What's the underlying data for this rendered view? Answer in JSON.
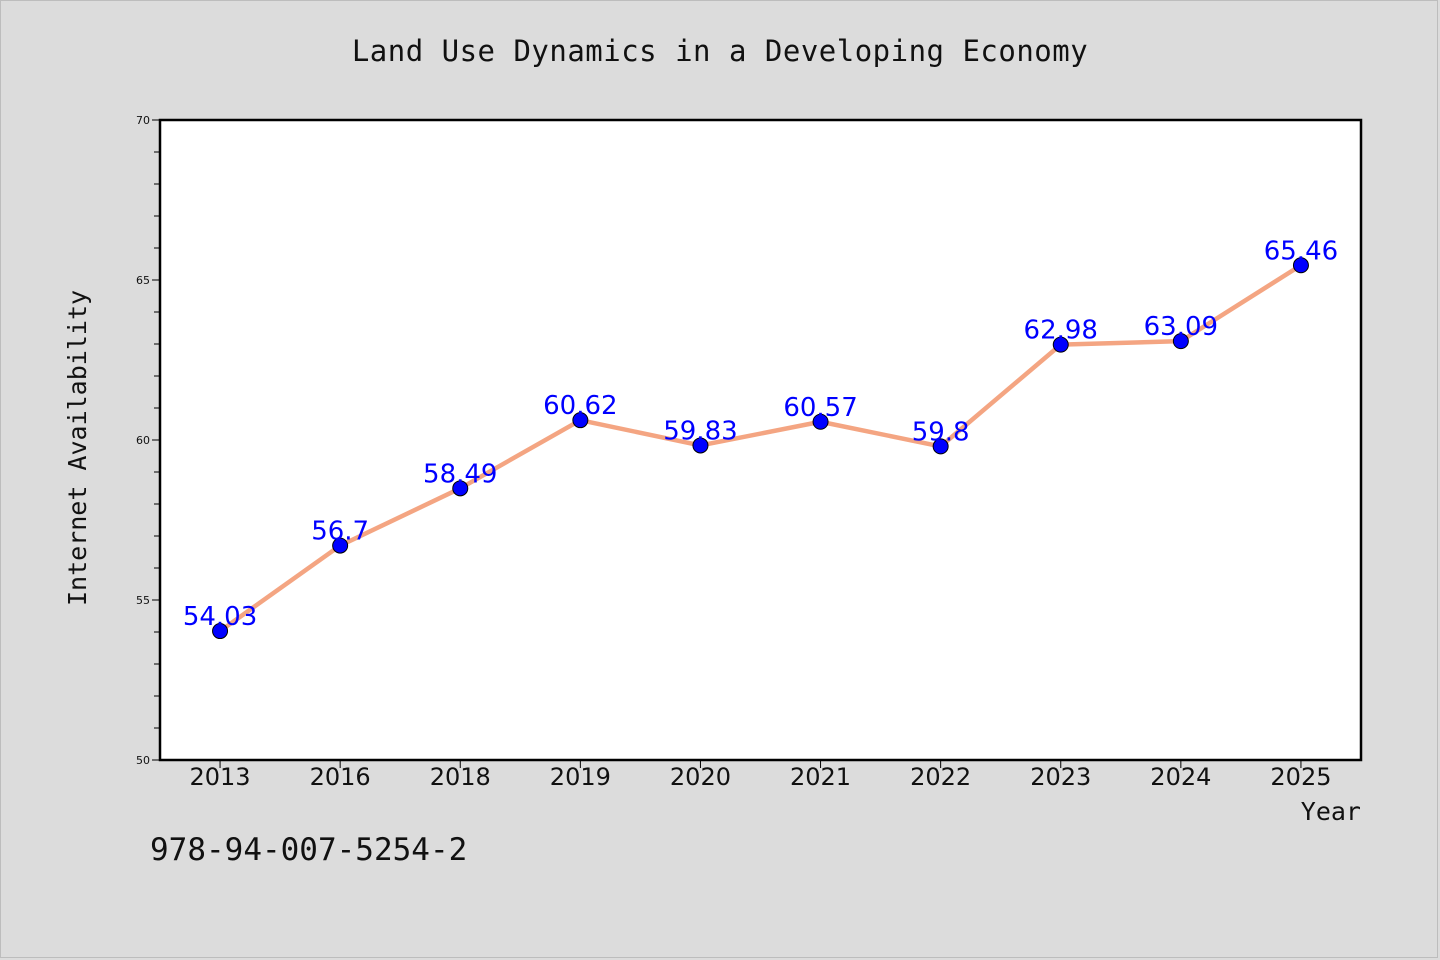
{
  "chart_data": {
    "type": "line",
    "title": "Land Use Dynamics in a Developing Economy",
    "xlabel": "Year",
    "ylabel": "Internet Availability",
    "categories": [
      "2013",
      "2016",
      "2018",
      "2019",
      "2020",
      "2021",
      "2022",
      "2023",
      "2024",
      "2025"
    ],
    "values": [
      54.03,
      56.7,
      58.49,
      60.62,
      59.83,
      60.57,
      59.8,
      62.98,
      63.09,
      65.46
    ],
    "data_labels": [
      "54.03",
      "56.7",
      "58.49",
      "60.62",
      "59.83",
      "60.57",
      "59.8",
      "62.98",
      "63.09",
      "65.46"
    ],
    "ylim": [
      50,
      70
    ],
    "yticks": [
      50,
      55,
      60,
      65,
      70
    ],
    "grid": false,
    "legend": "none",
    "line_color": "#f4a582",
    "marker_color": "#0000ff",
    "label_color": "#0000ff"
  },
  "footer": {
    "code": "978-94-007-5254-2"
  }
}
